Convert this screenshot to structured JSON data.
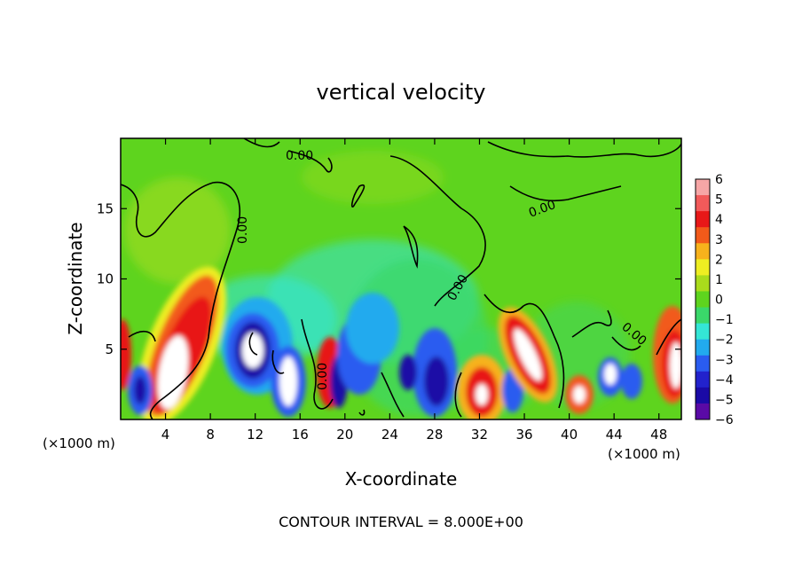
{
  "chart_data": {
    "type": "heatmap",
    "title": "vertical velocity",
    "xlabel": "X-coordinate",
    "ylabel": "Z-coordinate",
    "x_unit_left": "(×1000 m)",
    "x_unit_right": "(×1000 m)",
    "xlim": [
      0,
      50
    ],
    "ylim": [
      0,
      20
    ],
    "x_ticks": [
      4,
      8,
      12,
      16,
      20,
      24,
      28,
      32,
      36,
      40,
      44,
      48
    ],
    "y_ticks": [
      5,
      10,
      15
    ],
    "contour_labels": [
      "0.00",
      "0.00",
      "0.00",
      "0.00",
      "0.00",
      "0.00"
    ],
    "footer": "CONTOUR INTERVAL = 8.000E+00",
    "colorbar": {
      "ticks": [
        6,
        5,
        4,
        3,
        2,
        1,
        0,
        -1,
        -2,
        -3,
        -4,
        -5,
        -6
      ],
      "colors": [
        "#f6a6a6",
        "#f25a5a",
        "#e81818",
        "#f25a1a",
        "#f7b21c",
        "#eeee22",
        "#aadc1c",
        "#5ed41e",
        "#3ad86a",
        "#34e6d6",
        "#22aaee",
        "#2a5cf0",
        "#2222cc",
        "#1a0aa6",
        "#5a0aa6"
      ]
    },
    "features": [
      {
        "x": 1.5,
        "z": 2.0,
        "w": 2.0,
        "sign": "down"
      },
      {
        "x": 5.0,
        "z": 4.5,
        "w": 7.0,
        "sign": "up"
      },
      {
        "x": 12.5,
        "z": 5.0,
        "w": 4.0,
        "sign": "down"
      },
      {
        "x": 15.0,
        "z": 3.0,
        "w": 3.0,
        "sign": "down"
      },
      {
        "x": 18.5,
        "z": 3.0,
        "w": 2.5,
        "sign": "down"
      },
      {
        "x": 27.0,
        "z": 3.0,
        "w": 2.5,
        "sign": "down"
      },
      {
        "x": 32.0,
        "z": 2.0,
        "w": 5.0,
        "sign": "up"
      },
      {
        "x": 36.5,
        "z": 4.5,
        "w": 7.0,
        "sign": "up"
      },
      {
        "x": 40.5,
        "z": 1.8,
        "w": 3.5,
        "sign": "up"
      },
      {
        "x": 43.5,
        "z": 3.5,
        "w": 3.0,
        "sign": "down"
      },
      {
        "x": 48.5,
        "z": 4.0,
        "w": 7.0,
        "sign": "up"
      }
    ]
  }
}
